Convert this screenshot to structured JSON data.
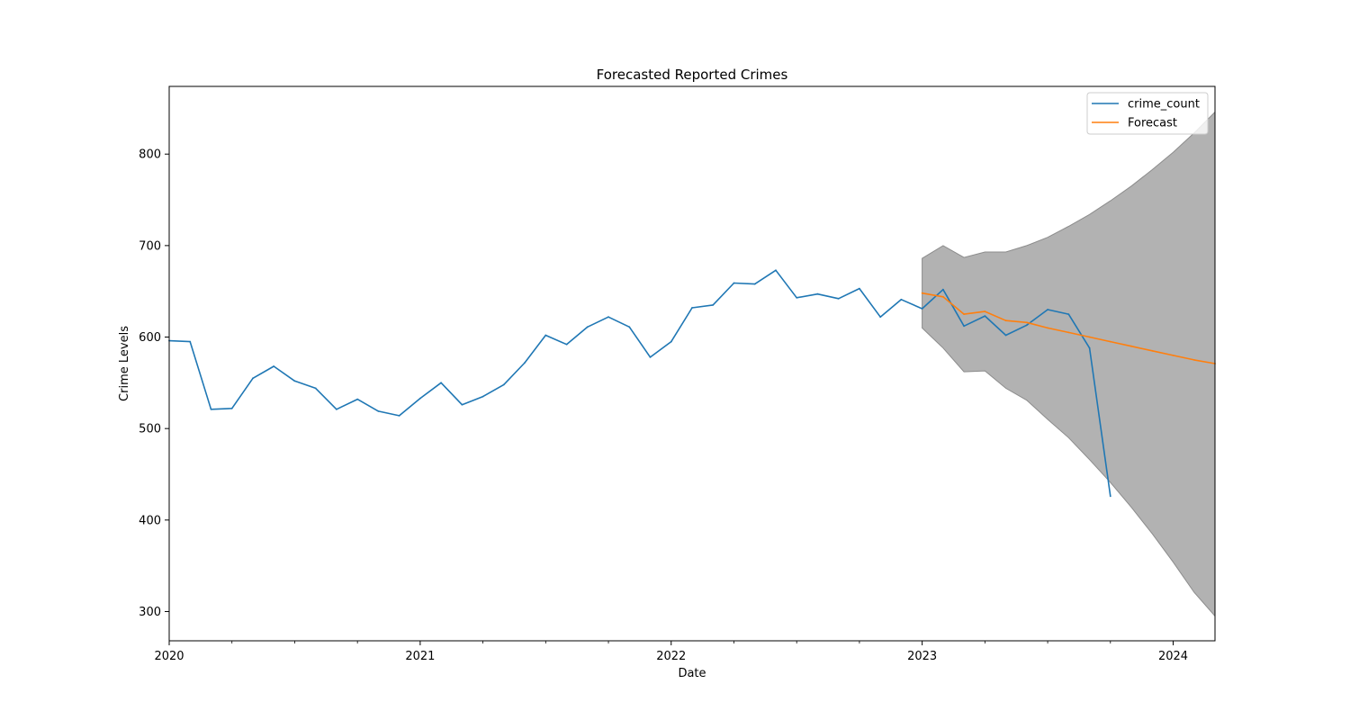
{
  "chart_data": {
    "type": "line",
    "title": "Forecasted Reported Crimes",
    "xlabel": "Date",
    "ylabel": "Crime Levels",
    "x_range": [
      "2020-01",
      "2024-03"
    ],
    "ylim": [
      268,
      874
    ],
    "x_ticks": [
      "2020",
      "2021",
      "2022",
      "2023",
      "2024"
    ],
    "y_ticks": [
      300,
      400,
      500,
      600,
      700,
      800
    ],
    "grid": false,
    "legend": {
      "placement": "top-right"
    },
    "colors": {
      "observed": "#1f77b4",
      "forecast": "#ff7f0e",
      "interval": "#b2b2b2",
      "interval_edge": "#8c8c8c"
    },
    "series": [
      {
        "name": "crime_count",
        "x": [
          "2020-01",
          "2020-02",
          "2020-03",
          "2020-04",
          "2020-05",
          "2020-06",
          "2020-07",
          "2020-08",
          "2020-09",
          "2020-10",
          "2020-11",
          "2020-12",
          "2021-01",
          "2021-02",
          "2021-03",
          "2021-04",
          "2021-05",
          "2021-06",
          "2021-07",
          "2021-08",
          "2021-09",
          "2021-10",
          "2021-11",
          "2021-12",
          "2022-01",
          "2022-02",
          "2022-03",
          "2022-04",
          "2022-05",
          "2022-06",
          "2022-07",
          "2022-08",
          "2022-09",
          "2022-10",
          "2022-11",
          "2022-12",
          "2023-01",
          "2023-02",
          "2023-03",
          "2023-04",
          "2023-05",
          "2023-06",
          "2023-07",
          "2023-08",
          "2023-09",
          "2023-10"
        ],
        "values": [
          596,
          595,
          521,
          522,
          555,
          568,
          552,
          544,
          521,
          532,
          519,
          514,
          533,
          550,
          526,
          535,
          548,
          572,
          602,
          592,
          611,
          622,
          611,
          578,
          595,
          632,
          635,
          659,
          658,
          673,
          643,
          647,
          642,
          653,
          622,
          641,
          631,
          652,
          612,
          623,
          602,
          613,
          630,
          625,
          588,
          426
        ]
      },
      {
        "name": "Forecast",
        "x": [
          "2023-01",
          "2023-02",
          "2023-03",
          "2023-04",
          "2023-05",
          "2023-06",
          "2023-07",
          "2023-08",
          "2023-09",
          "2023-10",
          "2023-11",
          "2023-12",
          "2024-01",
          "2024-02",
          "2024-03"
        ],
        "values": [
          648,
          644,
          625,
          628,
          618,
          616,
          610,
          605,
          600,
          595,
          590,
          585,
          580,
          575,
          571
        ]
      }
    ],
    "confidence_interval": {
      "x": [
        "2023-01",
        "2023-02",
        "2023-03",
        "2023-04",
        "2023-05",
        "2023-06",
        "2023-07",
        "2023-08",
        "2023-09",
        "2023-10",
        "2023-11",
        "2023-12",
        "2024-01",
        "2024-02",
        "2024-03"
      ],
      "lower": [
        610,
        588,
        562,
        563,
        544,
        531,
        510,
        490,
        466,
        441,
        414,
        385,
        354,
        321,
        295
      ],
      "upper": [
        686,
        700,
        687,
        693,
        693,
        700,
        709,
        721,
        734,
        749,
        765,
        783,
        802,
        823,
        846
      ]
    }
  }
}
